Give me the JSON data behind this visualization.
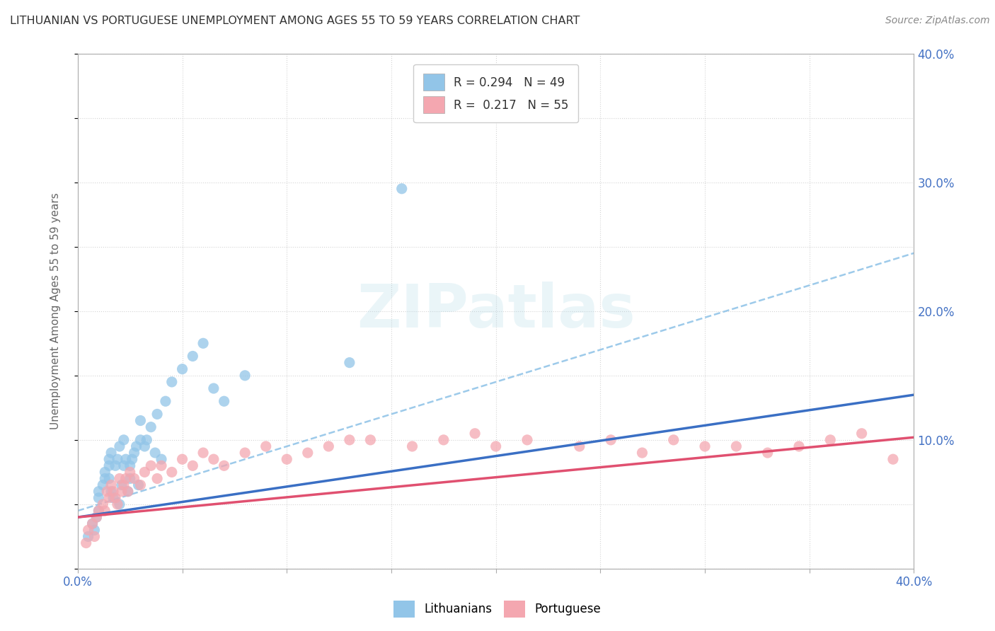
{
  "title": "LITHUANIAN VS PORTUGUESE UNEMPLOYMENT AMONG AGES 55 TO 59 YEARS CORRELATION CHART",
  "source": "Source: ZipAtlas.com",
  "ylabel": "Unemployment Among Ages 55 to 59 years",
  "xlim": [
    0.0,
    0.4
  ],
  "ylim": [
    0.0,
    0.4
  ],
  "R_lith": 0.294,
  "N_lith": 49,
  "R_port": 0.217,
  "N_port": 55,
  "color_lith": "#92c5e8",
  "color_port": "#f4a7b0",
  "line_color_lith": "#3a6fc4",
  "line_color_port": "#e05070",
  "line_color_dash": "#93c5e8",
  "lith_scatter_x": [
    0.005,
    0.007,
    0.008,
    0.009,
    0.01,
    0.01,
    0.01,
    0.012,
    0.013,
    0.013,
    0.015,
    0.015,
    0.015,
    0.016,
    0.016,
    0.017,
    0.018,
    0.019,
    0.02,
    0.02,
    0.021,
    0.022,
    0.022,
    0.023,
    0.024,
    0.025,
    0.025,
    0.026,
    0.027,
    0.028,
    0.029,
    0.03,
    0.03,
    0.032,
    0.033,
    0.035,
    0.037,
    0.038,
    0.04,
    0.042,
    0.045,
    0.05,
    0.055,
    0.06,
    0.065,
    0.07,
    0.08,
    0.13,
    0.155
  ],
  "lith_scatter_y": [
    0.025,
    0.035,
    0.03,
    0.04,
    0.045,
    0.055,
    0.06,
    0.065,
    0.07,
    0.075,
    0.07,
    0.08,
    0.085,
    0.06,
    0.09,
    0.055,
    0.08,
    0.085,
    0.05,
    0.095,
    0.065,
    0.08,
    0.1,
    0.085,
    0.06,
    0.07,
    0.08,
    0.085,
    0.09,
    0.095,
    0.065,
    0.1,
    0.115,
    0.095,
    0.1,
    0.11,
    0.09,
    0.12,
    0.085,
    0.13,
    0.145,
    0.155,
    0.165,
    0.175,
    0.14,
    0.13,
    0.15,
    0.16,
    0.295
  ],
  "port_scatter_x": [
    0.004,
    0.005,
    0.007,
    0.008,
    0.009,
    0.01,
    0.012,
    0.013,
    0.014,
    0.015,
    0.016,
    0.017,
    0.018,
    0.019,
    0.02,
    0.021,
    0.022,
    0.023,
    0.024,
    0.025,
    0.027,
    0.03,
    0.032,
    0.035,
    0.038,
    0.04,
    0.045,
    0.05,
    0.055,
    0.06,
    0.065,
    0.07,
    0.08,
    0.09,
    0.1,
    0.11,
    0.12,
    0.13,
    0.14,
    0.16,
    0.175,
    0.19,
    0.2,
    0.215,
    0.24,
    0.255,
    0.27,
    0.285,
    0.3,
    0.315,
    0.33,
    0.345,
    0.36,
    0.375,
    0.39
  ],
  "port_scatter_y": [
    0.02,
    0.03,
    0.035,
    0.025,
    0.04,
    0.045,
    0.05,
    0.045,
    0.06,
    0.055,
    0.065,
    0.06,
    0.055,
    0.05,
    0.07,
    0.06,
    0.065,
    0.07,
    0.06,
    0.075,
    0.07,
    0.065,
    0.075,
    0.08,
    0.07,
    0.08,
    0.075,
    0.085,
    0.08,
    0.09,
    0.085,
    0.08,
    0.09,
    0.095,
    0.085,
    0.09,
    0.095,
    0.1,
    0.1,
    0.095,
    0.1,
    0.105,
    0.095,
    0.1,
    0.095,
    0.1,
    0.09,
    0.1,
    0.095,
    0.095,
    0.09,
    0.095,
    0.1,
    0.105,
    0.085
  ],
  "lith_line_x0": 0.0,
  "lith_line_y0": 0.04,
  "lith_line_x1": 0.4,
  "lith_line_y1": 0.135,
  "port_line_x0": 0.0,
  "port_line_y0": 0.04,
  "port_line_x1": 0.4,
  "port_line_y1": 0.102,
  "dash_line_x0": 0.0,
  "dash_line_y0": 0.045,
  "dash_line_x1": 0.4,
  "dash_line_y1": 0.245,
  "watermark_text": "ZIPatlas",
  "background_color": "#ffffff",
  "grid_color": "#d0d0d0",
  "ytick_right_labels": [
    "10.0%",
    "20.0%",
    "30.0%",
    "40.0%"
  ],
  "ytick_right_vals": [
    0.1,
    0.2,
    0.3,
    0.4
  ],
  "ytick_color": "#4472c4"
}
